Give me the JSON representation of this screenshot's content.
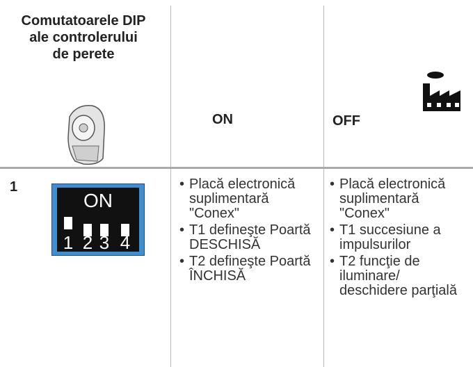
{
  "header": {
    "title": "Comutatoarele DIP ale controlerului de perete",
    "on": "ON",
    "off": "OFF"
  },
  "rows": [
    {
      "number": "1",
      "switch": {
        "label": "ON",
        "positions": [
          "1",
          "2",
          "3",
          "4"
        ]
      },
      "on": [
        "Placă electronică suplimentară \"Conex\"",
        "T1 defineşte Poartă DESCHISĂ",
        "T2 defineşte Poartă ÎNCHISĂ"
      ],
      "off": [
        "Placă electronică suplimentară \"Conex\"",
        "T1 succesiune a impulsurilor",
        "T2 funcţie de iluminare/ deschidere parţială"
      ]
    }
  ]
}
